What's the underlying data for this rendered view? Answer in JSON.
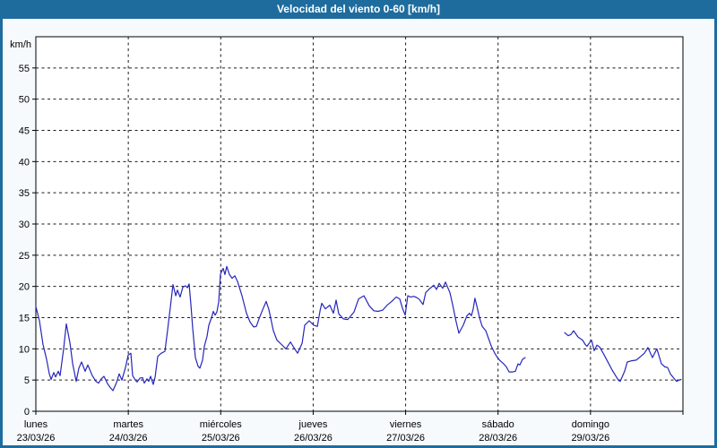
{
  "window": {
    "title": "Velocidad del viento 0-60 [km/h]"
  },
  "colors": {
    "titlebar": "#1e6c9e",
    "background": "#f6fafc",
    "plot_background": "#ffffff",
    "line": "#2626bb",
    "grid": "#1a1a1a",
    "axis": "#000000",
    "title_text": "#ffffff"
  },
  "chart_data": {
    "type": "line",
    "title": "Velocidad del viento 0-60 [km/h]",
    "ylabel": "km/h",
    "ylim": [
      0,
      60
    ],
    "ytick_step": 5,
    "ytick_labels": [
      "0",
      "5",
      "10",
      "15",
      "20",
      "25",
      "30",
      "35",
      "40",
      "45",
      "50",
      "55"
    ],
    "grid": "dotted",
    "legend": "none",
    "x_days": [
      {
        "name": "lunes",
        "date": "23/03/26"
      },
      {
        "name": "martes",
        "date": "24/03/26"
      },
      {
        "name": "miércoles",
        "date": "25/03/26"
      },
      {
        "name": "jueves",
        "date": "26/03/26"
      },
      {
        "name": "viernes",
        "date": "27/03/26"
      },
      {
        "name": "sábado",
        "date": "28/03/26"
      },
      {
        "name": "domingo",
        "date": "29/03/26"
      }
    ],
    "x_range_days": [
      0,
      7
    ],
    "series": [
      {
        "name": "Velocidad del viento",
        "unit": "km/h",
        "note": "x = days since lunes 23/03/26 00:00; null = data gap (sabado ~07h-18h)",
        "points": [
          [
            0.0,
            16.8
          ],
          [
            0.039,
            14.5
          ],
          [
            0.078,
            10.7
          ],
          [
            0.116,
            8.3
          ],
          [
            0.145,
            6.0
          ],
          [
            0.165,
            5.1
          ],
          [
            0.194,
            6.2
          ],
          [
            0.213,
            5.5
          ],
          [
            0.242,
            6.4
          ],
          [
            0.262,
            5.7
          ],
          [
            0.301,
            10.0
          ],
          [
            0.33,
            14.0
          ],
          [
            0.368,
            11.0
          ],
          [
            0.398,
            7.6
          ],
          [
            0.436,
            4.8
          ],
          [
            0.465,
            6.9
          ],
          [
            0.494,
            7.9
          ],
          [
            0.533,
            6.4
          ],
          [
            0.562,
            7.4
          ],
          [
            0.611,
            5.7
          ],
          [
            0.65,
            4.8
          ],
          [
            0.679,
            4.5
          ],
          [
            0.708,
            5.2
          ],
          [
            0.737,
            5.6
          ],
          [
            0.776,
            4.4
          ],
          [
            0.805,
            3.8
          ],
          [
            0.834,
            3.3
          ],
          [
            0.873,
            4.6
          ],
          [
            0.902,
            6.0
          ],
          [
            0.931,
            5.0
          ],
          [
            0.97,
            7.0
          ],
          [
            0.999,
            9.0
          ],
          [
            1.028,
            9.3
          ],
          [
            1.047,
            5.7
          ],
          [
            1.076,
            5.0
          ],
          [
            1.096,
            4.7
          ],
          [
            1.125,
            5.3
          ],
          [
            1.154,
            5.4
          ],
          [
            1.173,
            4.5
          ],
          [
            1.202,
            5.2
          ],
          [
            1.222,
            4.8
          ],
          [
            1.241,
            5.6
          ],
          [
            1.27,
            4.3
          ],
          [
            1.29,
            5.5
          ],
          [
            1.319,
            8.8
          ],
          [
            1.357,
            9.3
          ],
          [
            1.396,
            9.6
          ],
          [
            1.425,
            13.0
          ],
          [
            1.454,
            16.6
          ],
          [
            1.483,
            20.3
          ],
          [
            1.513,
            18.5
          ],
          [
            1.532,
            19.4
          ],
          [
            1.561,
            18.3
          ],
          [
            1.59,
            19.9
          ],
          [
            1.619,
            20.1
          ],
          [
            1.639,
            19.8
          ],
          [
            1.658,
            20.4
          ],
          [
            1.677,
            17.1
          ],
          [
            1.697,
            13.3
          ],
          [
            1.726,
            8.6
          ],
          [
            1.755,
            7.2
          ],
          [
            1.774,
            6.9
          ],
          [
            1.803,
            8.2
          ],
          [
            1.823,
            10.4
          ],
          [
            1.852,
            12.0
          ],
          [
            1.871,
            13.8
          ],
          [
            1.9,
            15.0
          ],
          [
            1.92,
            16.0
          ],
          [
            1.939,
            15.4
          ],
          [
            1.958,
            15.9
          ],
          [
            1.978,
            17.5
          ],
          [
            1.997,
            22.0
          ],
          [
            2.026,
            22.9
          ],
          [
            2.046,
            21.9
          ],
          [
            2.065,
            23.2
          ],
          [
            2.094,
            21.9
          ],
          [
            2.123,
            21.3
          ],
          [
            2.152,
            21.7
          ],
          [
            2.181,
            20.8
          ],
          [
            2.23,
            18.5
          ],
          [
            2.278,
            15.7
          ],
          [
            2.317,
            14.3
          ],
          [
            2.356,
            13.5
          ],
          [
            2.385,
            13.6
          ],
          [
            2.414,
            14.8
          ],
          [
            2.443,
            15.9
          ],
          [
            2.492,
            17.6
          ],
          [
            2.521,
            16.3
          ],
          [
            2.569,
            12.9
          ],
          [
            2.608,
            11.4
          ],
          [
            2.657,
            10.7
          ],
          [
            2.705,
            10.0
          ],
          [
            2.754,
            11.1
          ],
          [
            2.783,
            10.4
          ],
          [
            2.831,
            9.3
          ],
          [
            2.88,
            10.9
          ],
          [
            2.909,
            13.8
          ],
          [
            2.957,
            14.5
          ],
          [
            3.006,
            13.8
          ],
          [
            3.045,
            13.6
          ],
          [
            3.074,
            16.1
          ],
          [
            3.093,
            17.3
          ],
          [
            3.132,
            16.4
          ],
          [
            3.18,
            17.0
          ],
          [
            3.219,
            15.7
          ],
          [
            3.248,
            17.8
          ],
          [
            3.277,
            15.6
          ],
          [
            3.326,
            14.8
          ],
          [
            3.374,
            14.7
          ],
          [
            3.442,
            15.9
          ],
          [
            3.491,
            18.0
          ],
          [
            3.549,
            18.5
          ],
          [
            3.607,
            16.9
          ],
          [
            3.655,
            16.1
          ],
          [
            3.704,
            16.0
          ],
          [
            3.752,
            16.2
          ],
          [
            3.801,
            17.0
          ],
          [
            3.849,
            17.6
          ],
          [
            3.898,
            18.3
          ],
          [
            3.936,
            18.0
          ],
          [
            3.966,
            16.5
          ],
          [
            3.995,
            15.4
          ],
          [
            4.024,
            18.5
          ],
          [
            4.053,
            18.3
          ],
          [
            4.092,
            18.4
          ],
          [
            4.121,
            18.2
          ],
          [
            4.15,
            17.9
          ],
          [
            4.188,
            17.1
          ],
          [
            4.217,
            19.0
          ],
          [
            4.256,
            19.6
          ],
          [
            4.305,
            20.2
          ],
          [
            4.334,
            19.5
          ],
          [
            4.363,
            20.5
          ],
          [
            4.402,
            19.7
          ],
          [
            4.431,
            20.7
          ],
          [
            4.479,
            19.0
          ],
          [
            4.508,
            17.1
          ],
          [
            4.547,
            14.3
          ],
          [
            4.576,
            12.5
          ],
          [
            4.624,
            13.8
          ],
          [
            4.663,
            15.3
          ],
          [
            4.692,
            15.7
          ],
          [
            4.712,
            15.3
          ],
          [
            4.731,
            16.4
          ],
          [
            4.75,
            18.1
          ],
          [
            4.77,
            16.9
          ],
          [
            4.799,
            15.0
          ],
          [
            4.828,
            13.6
          ],
          [
            4.867,
            12.9
          ],
          [
            4.896,
            11.7
          ],
          [
            4.925,
            10.5
          ],
          [
            4.964,
            9.3
          ],
          [
            4.993,
            8.6
          ],
          [
            5.022,
            8.1
          ],
          [
            5.061,
            7.6
          ],
          [
            5.09,
            7.1
          ],
          [
            5.119,
            6.3
          ],
          [
            5.158,
            6.3
          ],
          [
            5.187,
            6.4
          ],
          [
            5.216,
            7.6
          ],
          [
            5.235,
            7.4
          ],
          [
            5.264,
            8.3
          ],
          [
            5.293,
            8.6
          ],
          null,
          [
            5.72,
            12.6
          ],
          [
            5.759,
            12.1
          ],
          [
            5.788,
            12.3
          ],
          [
            5.817,
            12.9
          ],
          [
            5.865,
            11.9
          ],
          [
            5.914,
            11.4
          ],
          [
            5.943,
            10.7
          ],
          [
            5.962,
            10.4
          ],
          [
            6.011,
            11.4
          ],
          [
            6.04,
            9.7
          ],
          [
            6.069,
            10.6
          ],
          [
            6.098,
            10.3
          ],
          [
            6.137,
            9.3
          ],
          [
            6.185,
            8.0
          ],
          [
            6.234,
            6.6
          ],
          [
            6.272,
            5.7
          ],
          [
            6.301,
            5.0
          ],
          [
            6.321,
            4.8
          ],
          [
            6.369,
            6.4
          ],
          [
            6.398,
            7.9
          ],
          [
            6.447,
            8.1
          ],
          [
            6.495,
            8.2
          ],
          [
            6.544,
            8.8
          ],
          [
            6.583,
            9.3
          ],
          [
            6.621,
            10.2
          ],
          [
            6.67,
            8.6
          ],
          [
            6.718,
            10.0
          ],
          [
            6.767,
            7.6
          ],
          [
            6.805,
            7.1
          ],
          [
            6.834,
            7.0
          ],
          [
            6.863,
            6.0
          ],
          [
            6.902,
            5.3
          ],
          [
            6.931,
            4.8
          ],
          [
            6.96,
            5.0
          ],
          [
            6.98,
            5.1
          ]
        ]
      }
    ]
  }
}
